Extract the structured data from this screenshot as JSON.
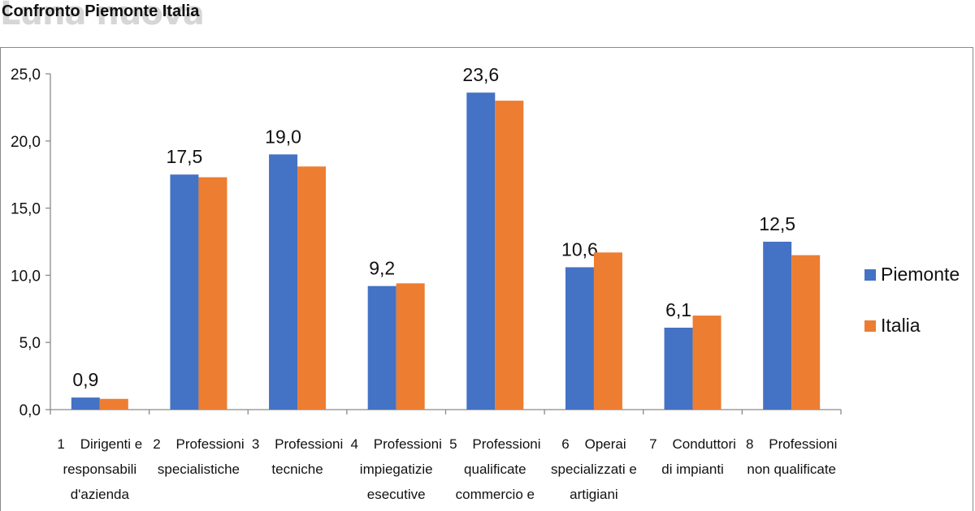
{
  "watermark": "Luna nuova",
  "title": "Confronto Piemonte Italia",
  "colors": {
    "piemonte": "#4472C4",
    "italia": "#ED7D31",
    "axis": "#8a8a8a"
  },
  "chart_data": {
    "type": "bar",
    "title": "Confronto Piemonte Italia",
    "xlabel": "",
    "ylabel": "",
    "ylim": [
      0,
      25
    ],
    "yticks": [
      0,
      5,
      10,
      15,
      20,
      25
    ],
    "ytick_labels": [
      "0,0",
      "5,0",
      "10,0",
      "15,0",
      "20,0",
      "25,0"
    ],
    "grid": false,
    "legend_position": "right",
    "categories": [
      [
        "1    Dirigenti e",
        "responsabili",
        "d'azienda"
      ],
      [
        "2    Professioni",
        "specialistiche"
      ],
      [
        "3    Professioni",
        "tecniche"
      ],
      [
        "4    Professioni",
        "impiegatizie",
        "esecutive"
      ],
      [
        "5    Professioni",
        "qualificate",
        "commercio e"
      ],
      [
        "6    Operai",
        "specializzati e",
        "artigiani"
      ],
      [
        "7    Conduttori",
        "di impianti"
      ],
      [
        "8    Professioni",
        "non qualificate"
      ]
    ],
    "series": [
      {
        "name": "Piemonte",
        "values": [
          0.9,
          17.5,
          19.0,
          9.2,
          23.6,
          10.6,
          6.1,
          12.5
        ],
        "data_labels": [
          "0,9",
          "17,5",
          "19,0",
          "9,2",
          "23,6",
          "10,6",
          "6,1",
          "12,5"
        ]
      },
      {
        "name": "Italia",
        "values": [
          0.8,
          17.3,
          18.1,
          9.4,
          23.0,
          11.7,
          7.0,
          11.5
        ]
      }
    ]
  }
}
